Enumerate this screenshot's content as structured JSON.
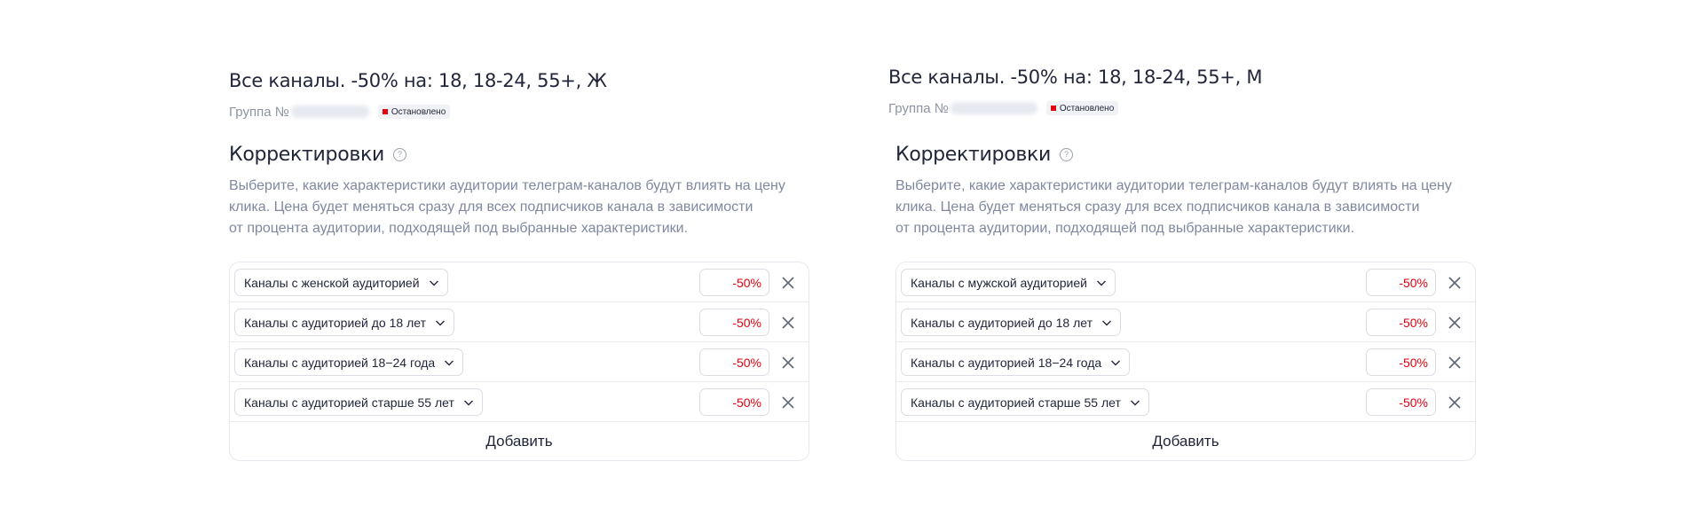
{
  "panels": [
    {
      "title": "Все каналы. -50% на: 18, 18-24, 55+, Ж",
      "group_label": "Группа №",
      "status": "Остановлено",
      "section_title": "Корректировки",
      "help_glyph": "?",
      "description": [
        "Выберите, какие характеристики аудитории телеграм-каналов будут влиять на цену",
        "клика. Цена будет меняться сразу для всех подписчиков канала в зависимости",
        "от процента аудитории, подходящей под выбранные характеристики."
      ],
      "rows": [
        {
          "label": "Каналы с женской аудиторией",
          "value": "-50%"
        },
        {
          "label": "Каналы с аудиторией до 18 лет",
          "value": "-50%"
        },
        {
          "label": "Каналы с аудиторией 18−24 года",
          "value": "-50%"
        },
        {
          "label": "Каналы с аудиторией старше 55 лет",
          "value": "-50%"
        }
      ],
      "add_label": "Добавить"
    },
    {
      "title": "Все каналы. -50% на: 18, 18-24, 55+, М",
      "group_label": "Группа №",
      "status": "Остановлено",
      "section_title": "Корректировки",
      "help_glyph": "?",
      "description": [
        "Выберите, какие характеристики аудитории телеграм-каналов будут влиять на цену",
        "клика. Цена будет меняться сразу для всех подписчиков канала в зависимости",
        "от процента аудитории, подходящей под выбранные характеристики."
      ],
      "rows": [
        {
          "label": "Каналы с мужской аудиторией",
          "value": "-50%"
        },
        {
          "label": "Каналы с аудиторией до 18 лет",
          "value": "-50%"
        },
        {
          "label": "Каналы с аудиторией 18−24 года",
          "value": "-50%"
        },
        {
          "label": "Каналы с аудиторией старше 55 лет",
          "value": "-50%"
        }
      ],
      "add_label": "Добавить"
    }
  ],
  "colors": {
    "status_dot": "#e3000f",
    "percent_text": "#e3000f",
    "muted_text": "#8088a0"
  },
  "icons": [
    "help-circle-icon",
    "chevron-down-icon",
    "close-icon",
    "status-dot-icon"
  ]
}
